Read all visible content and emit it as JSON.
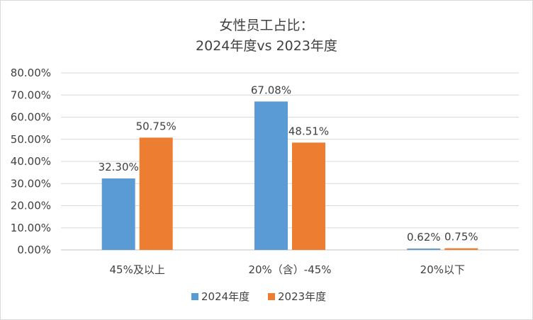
{
  "chart_data": {
    "type": "bar",
    "title_line1": "女性员工占比：",
    "title_line2": "2024年度vs 2023年度",
    "categories": [
      "45%及以上",
      "20%（含）-45%",
      "20%以下"
    ],
    "series": [
      {
        "name": "2024年度",
        "color": "#5b9bd5",
        "values": [
          32.3,
          67.08,
          0.62
        ],
        "labels": [
          "32.30%",
          "67.08%",
          "0.62%"
        ]
      },
      {
        "name": "2023年度",
        "color": "#ed7d31",
        "values": [
          50.75,
          48.51,
          0.75
        ],
        "labels": [
          "50.75%",
          "48.51%",
          "0.75%"
        ]
      }
    ],
    "ylim": [
      0,
      80
    ],
    "y_ticks": [
      "0.00%",
      "10.00%",
      "20.00%",
      "30.00%",
      "40.00%",
      "50.00%",
      "60.00%",
      "70.00%",
      "80.00%"
    ],
    "grid": true,
    "legend_position": "bottom"
  }
}
